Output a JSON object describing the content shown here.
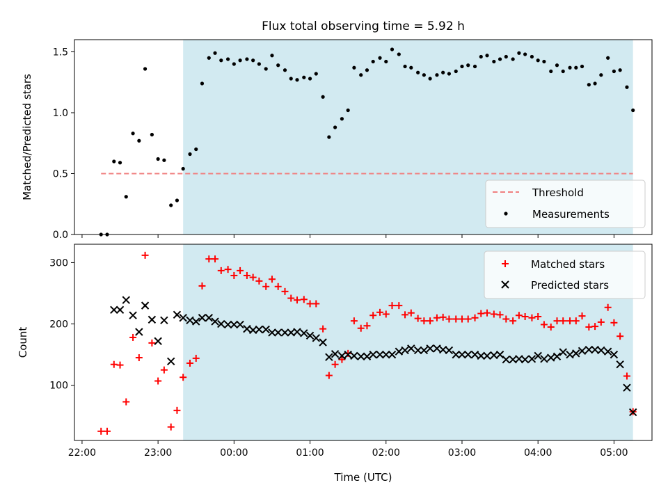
{
  "chart_data": {
    "title": "Flux total observing time = 5.92 h",
    "xlabel": "Time (UTC)",
    "x_unit": "hours from 22:00 UTC",
    "xlim": [
      -0.1,
      7.5
    ],
    "x_ticks": [
      {
        "value": 0,
        "label": "22:00"
      },
      {
        "value": 1,
        "label": "23:00"
      },
      {
        "value": 2,
        "label": "00:00"
      },
      {
        "value": 3,
        "label": "01:00"
      },
      {
        "value": 4,
        "label": "02:00"
      },
      {
        "value": 5,
        "label": "03:00"
      },
      {
        "value": 6,
        "label": "04:00"
      },
      {
        "value": 7,
        "label": "05:00"
      }
    ],
    "observing_window": {
      "start": 1.33,
      "end": 7.25,
      "color": "#add8e6"
    },
    "top": {
      "type": "scatter",
      "ylabel": "Matched/Predicted stars",
      "ylim": [
        0,
        1.6
      ],
      "yticks": [
        "0.0",
        "0.5",
        "1.0",
        "1.5"
      ],
      "ytick_values": [
        0,
        0.5,
        1.0,
        1.5
      ],
      "threshold": {
        "name": "Threshold",
        "value": 0.5,
        "x_start": 0.25,
        "x_end": 7.25,
        "color": "#f08080"
      },
      "legend": [
        "Threshold",
        "Measurements"
      ],
      "legend_position": "lower right",
      "measurements_name": "Measurements",
      "measurements": [
        [
          0.25,
          0.0
        ],
        [
          0.33,
          0.0
        ],
        [
          0.42,
          0.6
        ],
        [
          0.5,
          0.59
        ],
        [
          0.58,
          0.31
        ],
        [
          0.67,
          0.83
        ],
        [
          0.75,
          0.77
        ],
        [
          0.83,
          1.36
        ],
        [
          0.92,
          0.82
        ],
        [
          1.0,
          0.62
        ],
        [
          1.08,
          0.61
        ],
        [
          1.17,
          0.24
        ],
        [
          1.25,
          0.28
        ],
        [
          1.33,
          0.54
        ],
        [
          1.42,
          0.66
        ],
        [
          1.5,
          0.7
        ],
        [
          1.58,
          1.24
        ],
        [
          1.67,
          1.45
        ],
        [
          1.75,
          1.49
        ],
        [
          1.83,
          1.43
        ],
        [
          1.92,
          1.44
        ],
        [
          2.0,
          1.4
        ],
        [
          2.08,
          1.43
        ],
        [
          2.17,
          1.44
        ],
        [
          2.25,
          1.43
        ],
        [
          2.33,
          1.4
        ],
        [
          2.42,
          1.36
        ],
        [
          2.5,
          1.47
        ],
        [
          2.58,
          1.39
        ],
        [
          2.67,
          1.35
        ],
        [
          2.75,
          1.28
        ],
        [
          2.83,
          1.27
        ],
        [
          2.92,
          1.29
        ],
        [
          3.0,
          1.28
        ],
        [
          3.08,
          1.32
        ],
        [
          3.17,
          1.13
        ],
        [
          3.25,
          0.8
        ],
        [
          3.33,
          0.88
        ],
        [
          3.42,
          0.95
        ],
        [
          3.5,
          1.02
        ],
        [
          3.58,
          1.37
        ],
        [
          3.67,
          1.31
        ],
        [
          3.75,
          1.35
        ],
        [
          3.83,
          1.42
        ],
        [
          3.92,
          1.45
        ],
        [
          4.0,
          1.42
        ],
        [
          4.08,
          1.52
        ],
        [
          4.17,
          1.48
        ],
        [
          4.25,
          1.38
        ],
        [
          4.33,
          1.37
        ],
        [
          4.42,
          1.33
        ],
        [
          4.5,
          1.31
        ],
        [
          4.58,
          1.28
        ],
        [
          4.67,
          1.31
        ],
        [
          4.75,
          1.33
        ],
        [
          4.83,
          1.32
        ],
        [
          4.92,
          1.34
        ],
        [
          5.0,
          1.38
        ],
        [
          5.08,
          1.39
        ],
        [
          5.17,
          1.38
        ],
        [
          5.25,
          1.46
        ],
        [
          5.33,
          1.47
        ],
        [
          5.42,
          1.42
        ],
        [
          5.5,
          1.44
        ],
        [
          5.58,
          1.46
        ],
        [
          5.67,
          1.44
        ],
        [
          5.75,
          1.49
        ],
        [
          5.83,
          1.48
        ],
        [
          5.92,
          1.46
        ],
        [
          6.0,
          1.43
        ],
        [
          6.08,
          1.42
        ],
        [
          6.17,
          1.34
        ],
        [
          6.25,
          1.39
        ],
        [
          6.33,
          1.34
        ],
        [
          6.42,
          1.37
        ],
        [
          6.5,
          1.37
        ],
        [
          6.58,
          1.38
        ],
        [
          6.67,
          1.23
        ],
        [
          6.75,
          1.24
        ],
        [
          6.83,
          1.31
        ],
        [
          6.92,
          1.45
        ],
        [
          7.0,
          1.34
        ],
        [
          7.08,
          1.35
        ],
        [
          7.17,
          1.21
        ],
        [
          7.25,
          1.02
        ]
      ]
    },
    "bottom": {
      "type": "scatter",
      "ylabel": "Count",
      "ylim": [
        10,
        330
      ],
      "yticks": [
        "100",
        "200",
        "300"
      ],
      "ytick_values": [
        100,
        200,
        300
      ],
      "legend": [
        "Matched stars",
        "Predicted stars"
      ],
      "legend_position": "upper right",
      "series": [
        {
          "name": "Matched stars",
          "marker": "+",
          "color": "#ff0000",
          "points": [
            [
              0.25,
              25
            ],
            [
              0.33,
              25
            ],
            [
              0.42,
              134
            ],
            [
              0.5,
              133
            ],
            [
              0.58,
              73
            ],
            [
              0.67,
              178
            ],
            [
              0.75,
              145
            ],
            [
              0.83,
              312
            ],
            [
              0.92,
              169
            ],
            [
              1.0,
              107
            ],
            [
              1.08,
              125
            ],
            [
              1.17,
              32
            ],
            [
              1.25,
              59
            ],
            [
              1.33,
              113
            ],
            [
              1.42,
              136
            ],
            [
              1.5,
              144
            ],
            [
              1.58,
              262
            ],
            [
              1.67,
              306
            ],
            [
              1.75,
              306
            ],
            [
              1.83,
              287
            ],
            [
              1.92,
              289
            ],
            [
              2.0,
              279
            ],
            [
              2.08,
              287
            ],
            [
              2.17,
              279
            ],
            [
              2.25,
              276
            ],
            [
              2.33,
              270
            ],
            [
              2.42,
              261
            ],
            [
              2.5,
              273
            ],
            [
              2.58,
              261
            ],
            [
              2.67,
              253
            ],
            [
              2.75,
              242
            ],
            [
              2.83,
              239
            ],
            [
              2.92,
              240
            ],
            [
              3.0,
              233
            ],
            [
              3.08,
              233
            ],
            [
              3.17,
              192
            ],
            [
              3.25,
              116
            ],
            [
              3.33,
              134
            ],
            [
              3.42,
              142
            ],
            [
              3.5,
              152
            ],
            [
              3.58,
              205
            ],
            [
              3.67,
              193
            ],
            [
              3.75,
              197
            ],
            [
              3.83,
              214
            ],
            [
              3.92,
              219
            ],
            [
              4.0,
              216
            ],
            [
              4.08,
              230
            ],
            [
              4.17,
              230
            ],
            [
              4.25,
              215
            ],
            [
              4.33,
              218
            ],
            [
              4.42,
              209
            ],
            [
              4.5,
              205
            ],
            [
              4.58,
              205
            ],
            [
              4.67,
              210
            ],
            [
              4.75,
              211
            ],
            [
              4.83,
              208
            ],
            [
              4.92,
              208
            ],
            [
              5.0,
              208
            ],
            [
              5.08,
              208
            ],
            [
              5.17,
              210
            ],
            [
              5.25,
              217
            ],
            [
              5.33,
              218
            ],
            [
              5.42,
              216
            ],
            [
              5.5,
              215
            ],
            [
              5.58,
              208
            ],
            [
              5.67,
              205
            ],
            [
              5.75,
              214
            ],
            [
              5.83,
              212
            ],
            [
              5.92,
              210
            ],
            [
              6.0,
              212
            ],
            [
              6.08,
              199
            ],
            [
              6.17,
              195
            ],
            [
              6.25,
              205
            ],
            [
              6.33,
              205
            ],
            [
              6.42,
              205
            ],
            [
              6.5,
              205
            ],
            [
              6.58,
              213
            ],
            [
              6.67,
              195
            ],
            [
              6.75,
              196
            ],
            [
              6.83,
              203
            ],
            [
              6.92,
              227
            ],
            [
              7.0,
              202
            ],
            [
              7.08,
              180
            ],
            [
              7.17,
              115
            ],
            [
              7.25,
              57
            ]
          ]
        },
        {
          "name": "Predicted stars",
          "marker": "x",
          "color": "#000000",
          "points": [
            [
              0.42,
              223
            ],
            [
              0.5,
              223
            ],
            [
              0.58,
              239
            ],
            [
              0.67,
              214
            ],
            [
              0.75,
              187
            ],
            [
              0.83,
              230
            ],
            [
              0.92,
              207
            ],
            [
              1.0,
              172
            ],
            [
              1.08,
              206
            ],
            [
              1.17,
              139
            ],
            [
              1.25,
              215
            ],
            [
              1.33,
              210
            ],
            [
              1.42,
              206
            ],
            [
              1.5,
              204
            ],
            [
              1.58,
              210
            ],
            [
              1.67,
              210
            ],
            [
              1.75,
              204
            ],
            [
              1.83,
              200
            ],
            [
              1.92,
              199
            ],
            [
              2.0,
              199
            ],
            [
              2.08,
              199
            ],
            [
              2.17,
              192
            ],
            [
              2.25,
              190
            ],
            [
              2.33,
              191
            ],
            [
              2.42,
              191
            ],
            [
              2.5,
              186
            ],
            [
              2.58,
              186
            ],
            [
              2.67,
              186
            ],
            [
              2.75,
              186
            ],
            [
              2.83,
              187
            ],
            [
              2.92,
              185
            ],
            [
              3.0,
              181
            ],
            [
              3.08,
              177
            ],
            [
              3.17,
              170
            ],
            [
              3.25,
              146
            ],
            [
              3.33,
              151
            ],
            [
              3.42,
              148
            ],
            [
              3.5,
              150
            ],
            [
              3.58,
              148
            ],
            [
              3.67,
              147
            ],
            [
              3.75,
              147
            ],
            [
              3.83,
              150
            ],
            [
              3.92,
              150
            ],
            [
              4.0,
              150
            ],
            [
              4.08,
              150
            ],
            [
              4.17,
              155
            ],
            [
              4.25,
              157
            ],
            [
              4.33,
              160
            ],
            [
              4.42,
              157
            ],
            [
              4.5,
              157
            ],
            [
              4.58,
              160
            ],
            [
              4.67,
              160
            ],
            [
              4.75,
              158
            ],
            [
              4.83,
              157
            ],
            [
              4.92,
              150
            ],
            [
              5.0,
              150
            ],
            [
              5.08,
              150
            ],
            [
              5.17,
              150
            ],
            [
              5.25,
              148
            ],
            [
              5.33,
              148
            ],
            [
              5.42,
              149
            ],
            [
              5.5,
              150
            ],
            [
              5.58,
              142
            ],
            [
              5.67,
              142
            ],
            [
              5.75,
              143
            ],
            [
              5.83,
              142
            ],
            [
              5.92,
              143
            ],
            [
              6.0,
              148
            ],
            [
              6.08,
              143
            ],
            [
              6.17,
              145
            ],
            [
              6.25,
              147
            ],
            [
              6.33,
              154
            ],
            [
              6.42,
              150
            ],
            [
              6.5,
              152
            ],
            [
              6.58,
              156
            ],
            [
              6.67,
              158
            ],
            [
              6.75,
              158
            ],
            [
              6.83,
              157
            ],
            [
              6.92,
              155
            ],
            [
              7.0,
              150
            ],
            [
              7.08,
              134
            ],
            [
              7.17,
              96
            ],
            [
              7.25,
              56
            ]
          ]
        }
      ]
    }
  }
}
